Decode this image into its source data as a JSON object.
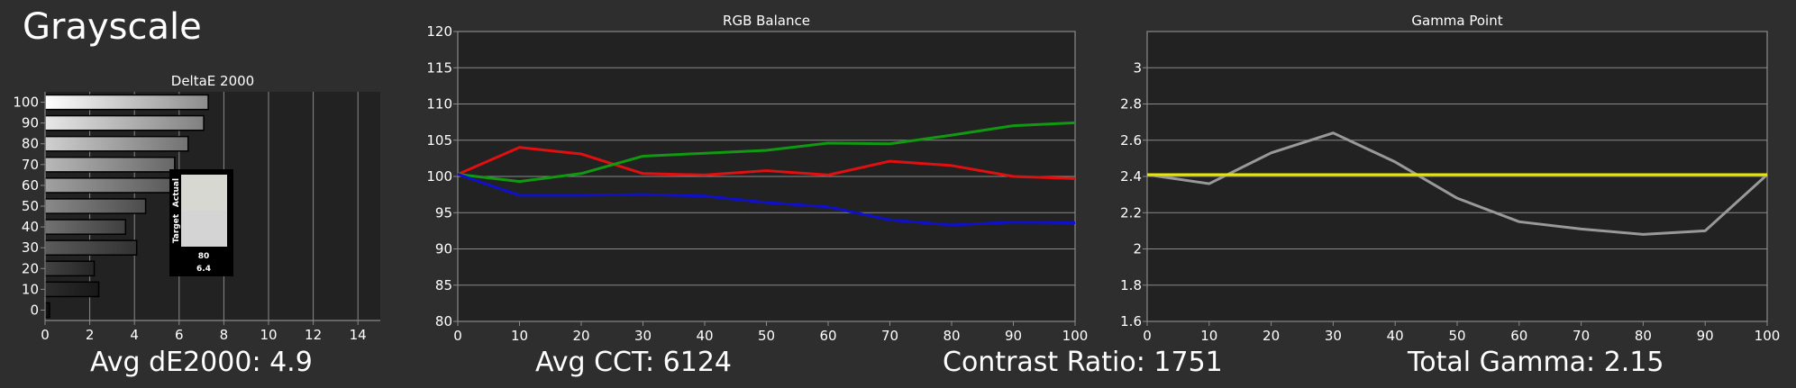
{
  "page": {
    "title": "Grayscale"
  },
  "metrics": {
    "avg_de": "Avg dE2000: 4.9",
    "avg_cct": "Avg CCT: 6124",
    "contrast": "Contrast Ratio: 1751",
    "total_gamma": "Total Gamma: 2.15"
  },
  "legend_swatch": {
    "actual_label": "Actual",
    "target_label": "Target",
    "level": "80",
    "de_value": "6.4",
    "actual_color": "#d8d8d2",
    "target_color": "#d4d4d4"
  },
  "colors": {
    "background": "#2e2e2e",
    "plot_background": "#222222",
    "grid": "#8a8a8a",
    "red": "#e01010",
    "green": "#119911",
    "blue": "#1010cc",
    "gamma_measured": "#999999",
    "gamma_target": "#e6e600"
  },
  "chart_data": [
    {
      "id": "deltae",
      "type": "bar",
      "orientation": "horizontal",
      "title": "DeltaE 2000",
      "categories": [
        "0",
        "10",
        "20",
        "30",
        "40",
        "50",
        "60",
        "70",
        "80",
        "90",
        "100"
      ],
      "values": [
        0.2,
        2.4,
        2.2,
        4.1,
        3.6,
        4.5,
        5.8,
        5.8,
        6.4,
        7.1,
        7.3
      ],
      "xlim": [
        0,
        15
      ],
      "xticks": [
        "0",
        "2",
        "4",
        "6",
        "8",
        "10",
        "12",
        "14"
      ],
      "grid": true
    },
    {
      "id": "rgb_balance",
      "type": "line",
      "title": "RGB Balance",
      "x": [
        0,
        10,
        20,
        30,
        40,
        50,
        60,
        70,
        80,
        90,
        100
      ],
      "xticks": [
        "0",
        "10",
        "20",
        "30",
        "40",
        "50",
        "60",
        "70",
        "80",
        "90",
        "100"
      ],
      "yticks": [
        "80",
        "85",
        "90",
        "95",
        "100",
        "105",
        "110",
        "115",
        "120"
      ],
      "ylim": [
        80,
        120
      ],
      "xlim": [
        0,
        100
      ],
      "grid": true,
      "series": [
        {
          "color": "#e01010",
          "values": [
            100.3,
            104.0,
            103.1,
            100.4,
            100.2,
            100.8,
            100.2,
            102.1,
            101.5,
            100.0,
            99.7
          ]
        },
        {
          "color": "#119911",
          "values": [
            100.3,
            99.3,
            100.4,
            102.8,
            103.2,
            103.6,
            104.6,
            104.5,
            105.7,
            107.0,
            107.4
          ]
        },
        {
          "color": "#1010cc",
          "values": [
            100.3,
            97.4,
            97.4,
            97.5,
            97.3,
            96.4,
            95.8,
            94.0,
            93.3,
            93.7,
            93.6
          ]
        }
      ]
    },
    {
      "id": "gamma_point",
      "type": "line",
      "title": "Gamma Point",
      "x": [
        0,
        10,
        20,
        30,
        40,
        50,
        60,
        70,
        80,
        90,
        100
      ],
      "xticks": [
        "0",
        "10",
        "20",
        "30",
        "40",
        "50",
        "60",
        "70",
        "80",
        "90",
        "100"
      ],
      "yticks": [
        "1.6",
        "1.8",
        "2",
        "2.2",
        "2.4",
        "2.6",
        "2.8",
        "3"
      ],
      "ylim": [
        1.6,
        3.2
      ],
      "xlim": [
        0,
        100
      ],
      "grid": true,
      "series": [
        {
          "color": "#999999",
          "values": [
            2.41,
            2.36,
            2.53,
            2.64,
            2.48,
            2.28,
            2.15,
            2.11,
            2.08,
            2.1,
            2.41
          ]
        },
        {
          "color": "#e6e600",
          "values": [
            2.41,
            2.41,
            2.41,
            2.41,
            2.41,
            2.41,
            2.41,
            2.41,
            2.41,
            2.41,
            2.41
          ]
        }
      ]
    }
  ]
}
